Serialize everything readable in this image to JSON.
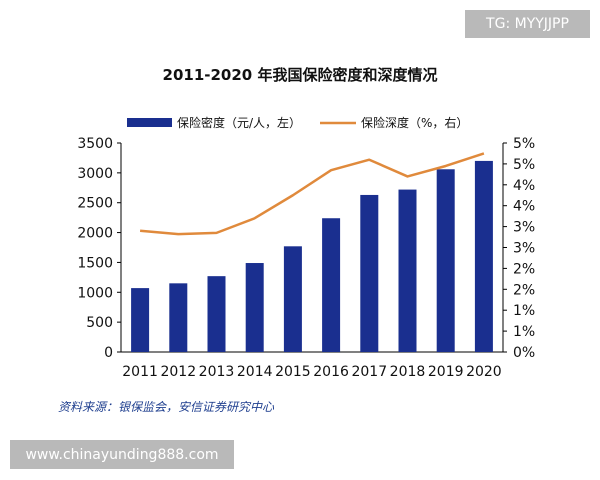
{
  "watermark_top": "TG: MYYJJPP",
  "watermark_bottom": "www.chinayunding888.com",
  "source_note": "资料来源：银保监会，安信证券研究中心",
  "colors": {
    "bar": "#1a2f8f",
    "line": "#e08a3c",
    "axis": "#000000"
  },
  "chart_data": {
    "type": "bar",
    "title": "2011-2020 年我国保险密度和深度情况",
    "categories": [
      "2011",
      "2012",
      "2013",
      "2014",
      "2015",
      "2016",
      "2017",
      "2018",
      "2019",
      "2020"
    ],
    "series": [
      {
        "name": "保险密度（元/人，左）",
        "type": "bar",
        "axis": "left",
        "values": [
          1070,
          1150,
          1270,
          1490,
          1770,
          2240,
          2630,
          2720,
          3060,
          3200
        ]
      },
      {
        "name": "保险深度（%，右）",
        "type": "line",
        "axis": "right",
        "values": [
          2.9,
          2.82,
          2.85,
          3.2,
          3.75,
          4.35,
          4.6,
          4.2,
          4.45,
          4.75
        ]
      }
    ],
    "ylim_left": [
      0,
      3500
    ],
    "yticks_left": [
      "0",
      "500",
      "1000",
      "1500",
      "2000",
      "2500",
      "3000",
      "3500"
    ],
    "ylim_right": [
      0,
      5
    ],
    "yticks_right": [
      "0%",
      "1%",
      "1%",
      "2%",
      "2%",
      "3%",
      "3%",
      "4%",
      "4%",
      "5%",
      "5%"
    ],
    "legend_position": "top",
    "grid": false
  }
}
